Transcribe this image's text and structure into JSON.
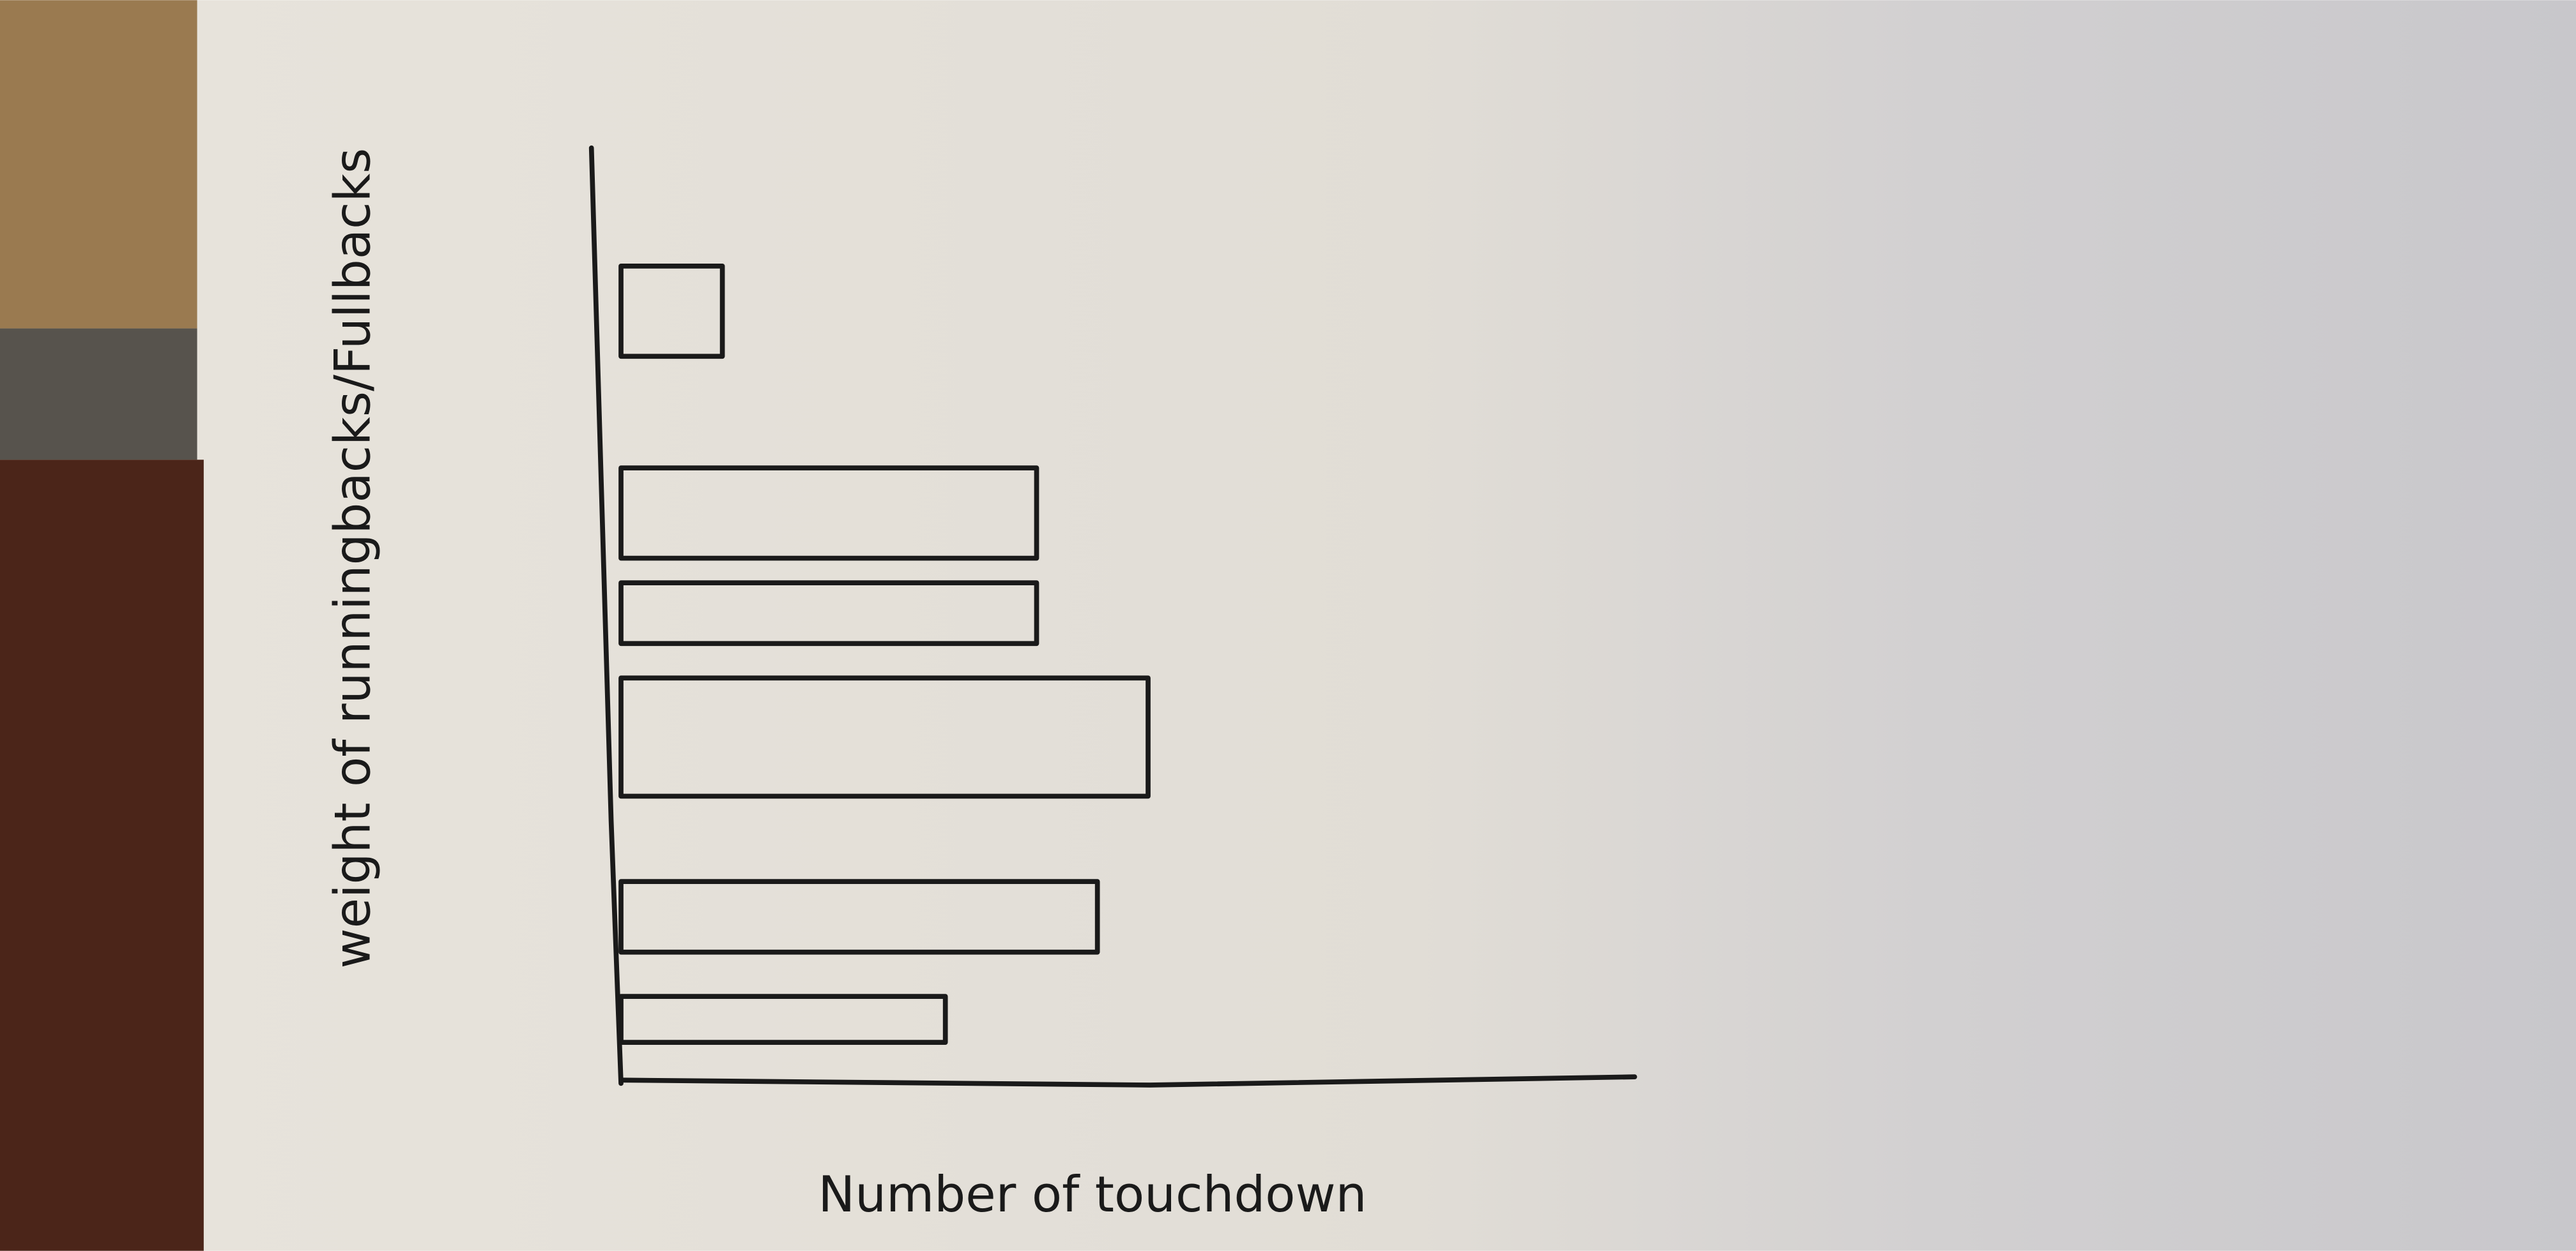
{
  "chart_data": {
    "type": "barh",
    "title": "weight of runningbacks/Fullbacks",
    "x_label": "Number of touchdown",
    "categories": [
      null,
      null,
      null,
      null,
      null,
      null
    ],
    "values": [
      1.0,
      4.1,
      4.1,
      5.2,
      4.7,
      3.2
    ],
    "xlim": [
      0,
      10
    ],
    "color": "none"
  }
}
